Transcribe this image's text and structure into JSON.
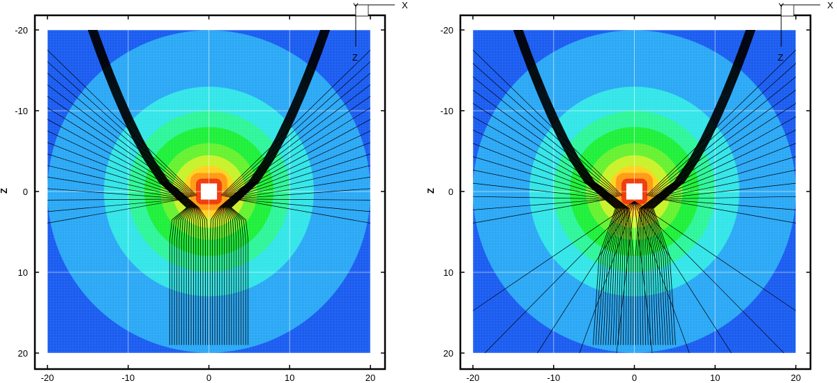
{
  "chart_data": [
    {
      "type": "heatmap",
      "title": "",
      "xlabel": "",
      "ylabel": "Z",
      "xlim": [
        -20,
        20
      ],
      "ylim": [
        -20,
        20
      ],
      "y_axis_inverted": true,
      "x_ticks": [
        "-20",
        "-10",
        "0",
        "10",
        "20"
      ],
      "y_ticks": [
        "-20",
        "-10",
        "0",
        "10",
        "20"
      ],
      "grid": true,
      "contour_levels_radius": [
        20,
        16.5,
        13,
        10,
        8,
        6,
        4.5,
        3.2,
        2.3,
        1.6
      ],
      "contour_colors": [
        "#1a5cf0",
        "#2ba8f5",
        "#33e5e8",
        "#2ef59a",
        "#1ef03a",
        "#66f230",
        "#c8f22a",
        "#ffd21e",
        "#ff9a14",
        "#f03a0a"
      ],
      "streamlines": {
        "count": 34,
        "source_half_width": 5,
        "source_z": 19,
        "apex_z": 1.5,
        "wall_top_x": 15,
        "style": "parallel"
      },
      "triad": {
        "labels": [
          "Y",
          "X",
          "Z"
        ]
      }
    },
    {
      "type": "heatmap",
      "title": "",
      "xlabel": "",
      "ylabel": "Z",
      "xlim": [
        -20,
        20
      ],
      "ylim": [
        -20,
        20
      ],
      "y_axis_inverted": true,
      "x_ticks": [
        "-20",
        "-10",
        "0",
        "10",
        "20"
      ],
      "y_ticks": [
        "-20",
        "-10",
        "0",
        "10",
        "20"
      ],
      "grid": true,
      "contour_levels_radius": [
        20,
        16.5,
        13,
        10,
        8,
        6,
        4.5,
        3.2,
        2.3,
        1.6
      ],
      "contour_colors": [
        "#1a5cf0",
        "#2ba8f5",
        "#33e5e8",
        "#2ef59a",
        "#1ef03a",
        "#66f230",
        "#c8f22a",
        "#ffd21e",
        "#ff9a14",
        "#f03a0a"
      ],
      "streamlines": {
        "count": 34,
        "source_half_width": 5,
        "source_z": 19,
        "apex_z": 1.5,
        "wall_top_x": 15,
        "style": "radial"
      },
      "triad": {
        "labels": [
          "Y",
          "X",
          "Z"
        ]
      }
    }
  ]
}
